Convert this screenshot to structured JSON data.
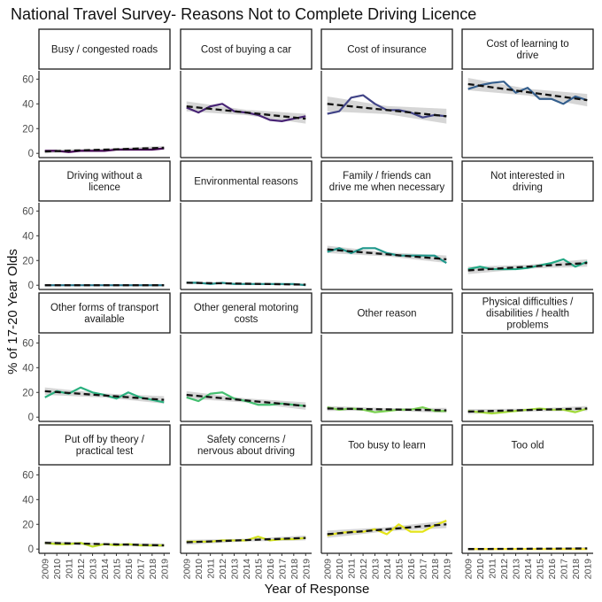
{
  "chart_data": {
    "type": "line",
    "title": "National Travel Survey- Reasons Not to Complete Driving Licence",
    "xlabel": "Year of Response",
    "ylabel": "% of 17-20 Year Olds",
    "ylim": [
      -2,
      66
    ],
    "yticks": [
      0,
      20,
      40,
      60
    ],
    "x": [
      2009,
      2010,
      2011,
      2012,
      2013,
      2014,
      2015,
      2016,
      2017,
      2018,
      2019
    ],
    "xlim": [
      2008.5,
      2019.5
    ],
    "grid": false,
    "legend": "none",
    "trend_style": "black dashed linear fit with grey confidence band",
    "panels": [
      {
        "label": "Busy / congested roads",
        "color": "#440154",
        "values": [
          2,
          2,
          1,
          2,
          2,
          2,
          3,
          3,
          3,
          3,
          4
        ],
        "trend": [
          1.5,
          4.5
        ],
        "band": 1.5
      },
      {
        "label": "Cost of buying a car",
        "color": "#482475",
        "values": [
          37,
          33,
          38,
          40,
          34,
          33,
          31,
          27,
          26,
          28,
          30
        ],
        "trend": [
          38,
          28
        ],
        "band": 4
      },
      {
        "label": "Cost of insurance",
        "color": "#414487",
        "values": [
          32,
          34,
          45,
          47,
          40,
          35,
          35,
          33,
          29,
          31,
          30
        ],
        "trend": [
          40,
          30
        ],
        "band": 6
      },
      {
        "label": "Cost of learning to drive",
        "color": "#355f8d",
        "values": [
          52,
          55,
          57,
          58,
          49,
          53,
          44,
          44,
          40,
          46,
          43
        ],
        "trend": [
          56,
          43
        ],
        "band": 5
      },
      {
        "label": "Driving without a licence",
        "color": "#2a788e",
        "values": [
          0,
          0,
          0,
          0,
          0,
          0,
          0,
          0,
          0,
          0,
          0
        ],
        "trend": [
          0,
          0
        ],
        "band": 1
      },
      {
        "label": "Environmental reasons",
        "color": "#21918c",
        "values": [
          2,
          2,
          1,
          2,
          1,
          1,
          1,
          1,
          1,
          1,
          0
        ],
        "trend": [
          2,
          0.5
        ],
        "band": 1
      },
      {
        "label": "Family / friends can drive me when necessary",
        "color": "#1f978b",
        "values": [
          27,
          30,
          26,
          30,
          30,
          26,
          24,
          24,
          24,
          24,
          18
        ],
        "trend": [
          29,
          21
        ],
        "band": 3
      },
      {
        "label": "Not interested in driving",
        "color": "#22a884",
        "values": [
          13,
          15,
          13,
          13,
          13,
          14,
          16,
          18,
          21,
          15,
          19
        ],
        "trend": [
          12,
          18
        ],
        "band": 3
      },
      {
        "label": "Other forms of transport available",
        "color": "#2ab07f",
        "values": [
          16,
          21,
          19,
          24,
          20,
          18,
          15,
          20,
          16,
          14,
          12
        ],
        "trend": [
          21,
          14
        ],
        "band": 3
      },
      {
        "label": "Other general motoring costs",
        "color": "#44bf70",
        "values": [
          16,
          13,
          19,
          20,
          15,
          13,
          10,
          10,
          11,
          10,
          9
        ],
        "trend": [
          18,
          9
        ],
        "band": 3
      },
      {
        "label": "Other reason",
        "color": "#7ad151",
        "values": [
          8,
          6,
          7,
          6,
          4,
          5,
          6,
          6,
          8,
          5,
          5
        ],
        "trend": [
          7,
          5.5
        ],
        "band": 2
      },
      {
        "label": "Physical difficulties / disabilities / health problems",
        "color": "#a0da39",
        "values": [
          5,
          4,
          3,
          4,
          5,
          6,
          7,
          6,
          6,
          4,
          7
        ],
        "trend": [
          4.5,
          7
        ],
        "band": 2
      },
      {
        "label": "Put off by theory / practical test",
        "color": "#bddf26",
        "values": [
          5,
          4,
          4,
          5,
          2,
          4,
          3,
          4,
          3,
          3,
          3
        ],
        "trend": [
          5,
          3
        ],
        "band": 1.5
      },
      {
        "label": "Safety concerns / nervous about driving",
        "color": "#d2e21b",
        "values": [
          6,
          6,
          6,
          7,
          7,
          7,
          10,
          7,
          8,
          8,
          9
        ],
        "trend": [
          5.5,
          9
        ],
        "band": 2
      },
      {
        "label": "Too busy to learn",
        "color": "#e4e419",
        "values": [
          11,
          13,
          14,
          14,
          16,
          12,
          20,
          14,
          14,
          19,
          23
        ],
        "trend": [
          12,
          20
        ],
        "band": 3
      },
      {
        "label": "Too old",
        "color": "#fde725",
        "values": [
          0,
          0,
          0,
          0,
          0,
          0,
          0,
          0,
          0,
          0,
          0
        ],
        "trend": [
          0,
          0.5
        ],
        "band": 1
      }
    ]
  }
}
